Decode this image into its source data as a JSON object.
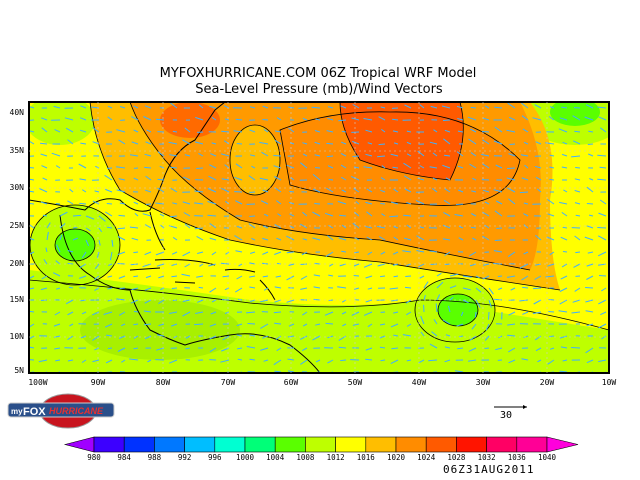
{
  "title": {
    "line1": "MYFOXHURRICANE.COM 06Z Tropical WRF Model",
    "line2": "Sea-Level Pressure (mb)/Wind Vectors"
  },
  "map": {
    "lat_labels": [
      "40N",
      "35N",
      "30N",
      "25N",
      "20N",
      "15N",
      "10N",
      "5N"
    ],
    "lon_labels": [
      "100W",
      "90W",
      "80W",
      "70W",
      "60W",
      "50W",
      "40W",
      "30W",
      "20W",
      "10W"
    ],
    "vector_color": "#3fb0ff",
    "contour_color": "#000000"
  },
  "vector_legend": {
    "label": "30"
  },
  "colorbar": {
    "labels": [
      "980",
      "984",
      "988",
      "992",
      "996",
      "1000",
      "1004",
      "1008",
      "1012",
      "1016",
      "1020",
      "1024",
      "1028",
      "1032",
      "1036",
      "1040"
    ],
    "colors": [
      "#a000ff",
      "#3c00ff",
      "#0032ff",
      "#0078ff",
      "#00beff",
      "#00ffd2",
      "#00ff78",
      "#5aff00",
      "#beff00",
      "#ffff00",
      "#ffbe00",
      "#ff8c00",
      "#ff5a00",
      "#ff1400",
      "#ff0064",
      "#ff0096",
      "#ff00dc"
    ]
  },
  "date": "06Z31AUG2011",
  "logo": {
    "text": "myFOX HURRICANE .com"
  }
}
